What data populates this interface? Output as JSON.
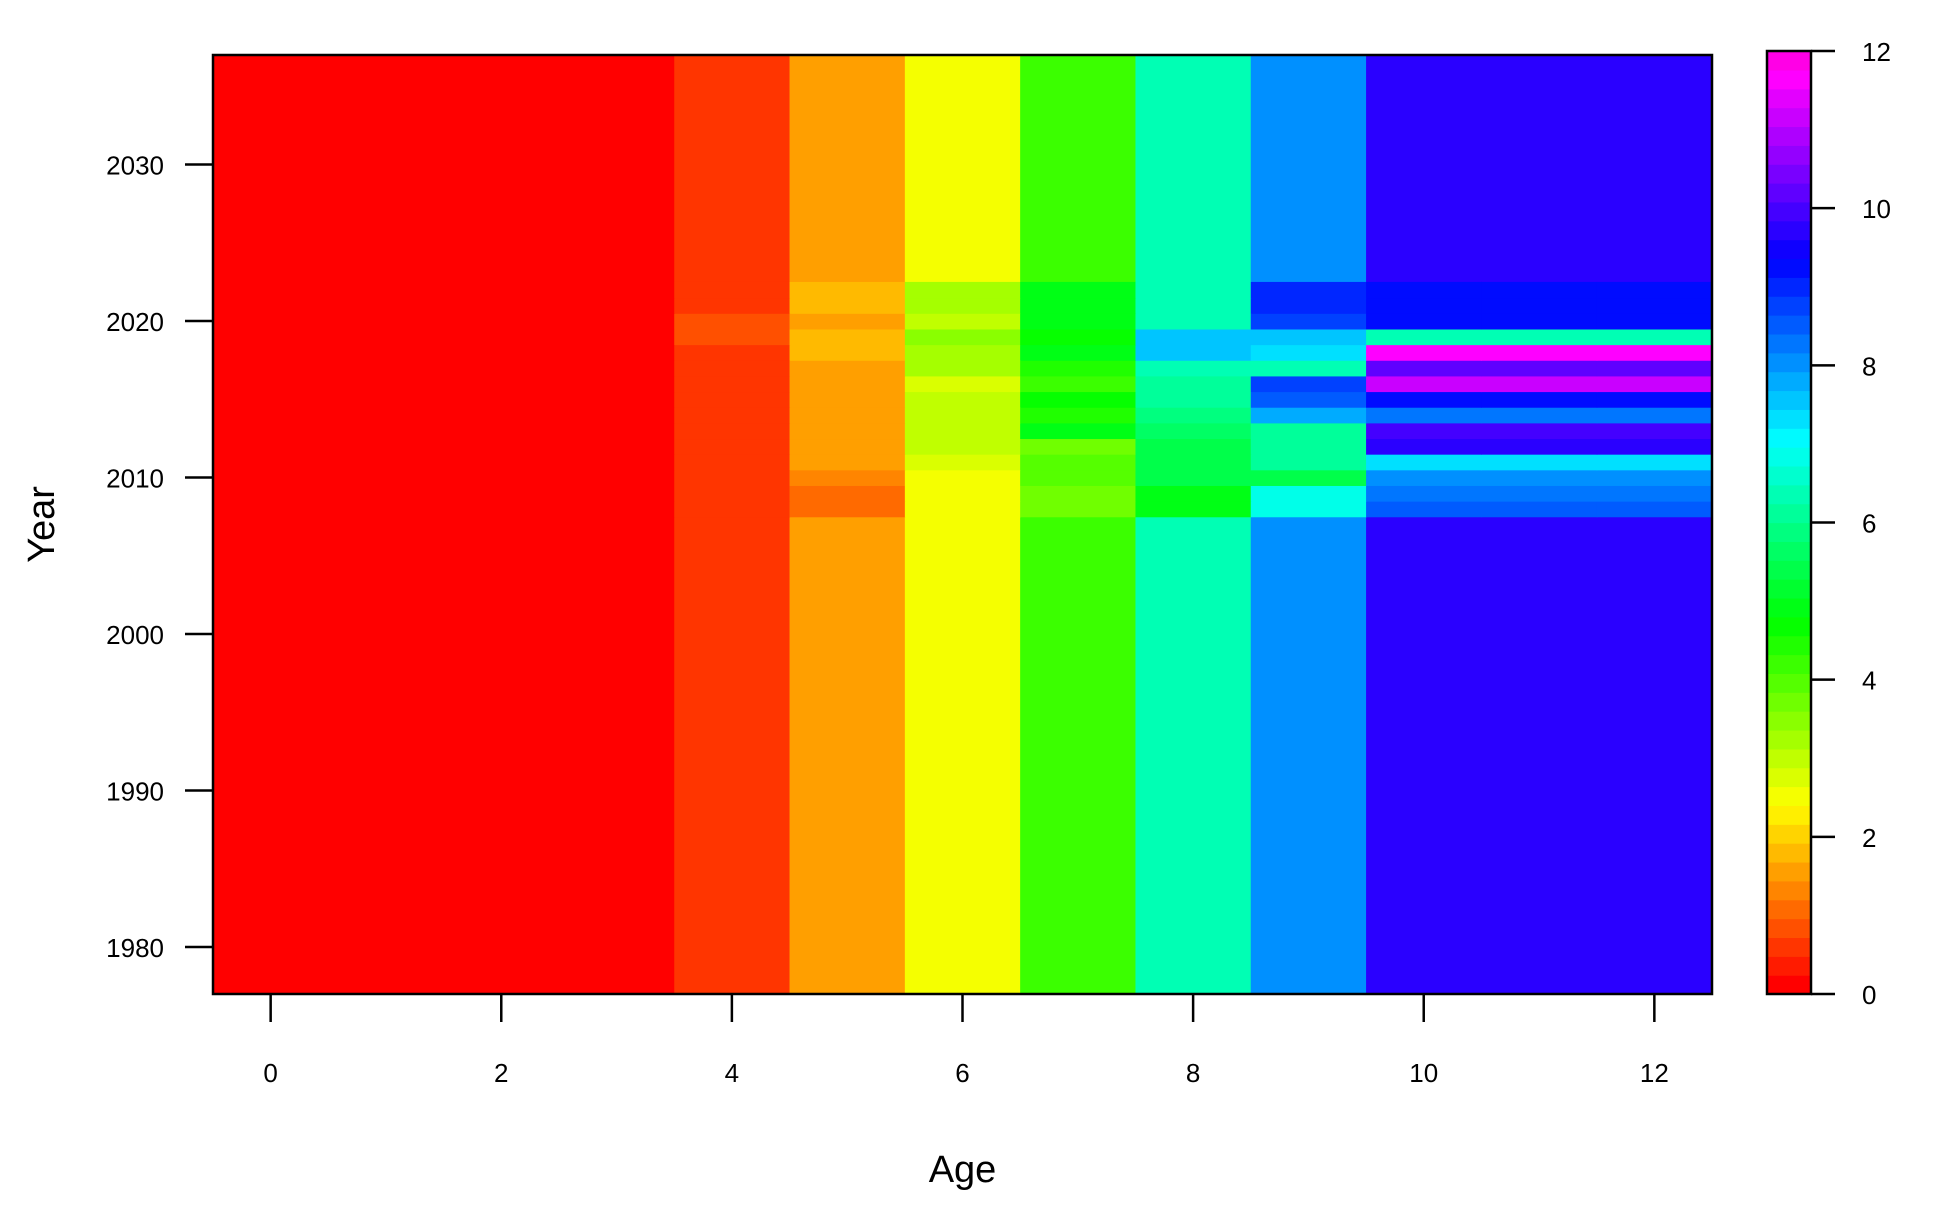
{
  "chart_data": {
    "type": "heatmap",
    "title": "",
    "xlabel": "Age",
    "ylabel": "Year",
    "x": [
      0,
      1,
      2,
      3,
      4,
      5,
      6,
      7,
      8,
      9,
      10,
      11,
      12
    ],
    "y_range": [
      1977,
      2037
    ],
    "xlim": [
      -0.5,
      12.5
    ],
    "x_ticks": [
      "0",
      "2",
      "4",
      "6",
      "8",
      "10",
      "12"
    ],
    "y_ticks": [
      "1980",
      "1990",
      "2000",
      "2010",
      "2020",
      "2030"
    ],
    "colorbar": {
      "range": [
        0,
        12
      ],
      "ticks": [
        "0",
        "2",
        "4",
        "6",
        "8",
        "10",
        "12"
      ],
      "palette": "rainbow (red → yellow → green → cyan → blue → magenta)",
      "levels": 50
    },
    "baseline_by_age": [
      0,
      0,
      0,
      0,
      0.65,
      1.5,
      2.6,
      4.2,
      6.3,
      8.1,
      9.8,
      9.8,
      9.8
    ],
    "baseline_years": "1977–2007 and 2023–2037",
    "rows": [
      {
        "year": 2008,
        "values": [
          0,
          0,
          0,
          0,
          0.65,
          1.1,
          2.6,
          3.8,
          4.8,
          6.8,
          8.5,
          8.5,
          8.5
        ]
      },
      {
        "year": 2009,
        "values": [
          0,
          0,
          0,
          0,
          0.65,
          1.1,
          2.6,
          3.8,
          4.8,
          6.8,
          8.3,
          8.3,
          8.3
        ]
      },
      {
        "year": 2010,
        "values": [
          0,
          0,
          0,
          0,
          0.65,
          1.2,
          2.6,
          3.9,
          5.3,
          5.5,
          8.0,
          8.0,
          8.0
        ]
      },
      {
        "year": 2011,
        "values": [
          0,
          0,
          0,
          0,
          0.65,
          1.6,
          2.8,
          3.9,
          5.3,
          6.0,
          7.4,
          7.4,
          7.4
        ]
      },
      {
        "year": 2012,
        "values": [
          0,
          0,
          0,
          0,
          0.65,
          1.5,
          2.9,
          3.6,
          5.4,
          6.1,
          9.6,
          9.6,
          9.6
        ]
      },
      {
        "year": 2013,
        "values": [
          0,
          0,
          0,
          0,
          0.65,
          1.5,
          3.0,
          4.8,
          5.7,
          6.0,
          9.9,
          9.9,
          9.9
        ]
      },
      {
        "year": 2014,
        "values": [
          0,
          0,
          0,
          0,
          0.65,
          1.5,
          3.1,
          4.4,
          5.8,
          7.8,
          8.3,
          8.3,
          8.3
        ]
      },
      {
        "year": 2015,
        "values": [
          0,
          0,
          0,
          0,
          0.65,
          1.5,
          3.0,
          4.7,
          6.0,
          8.6,
          9.2,
          9.2,
          9.2
        ]
      },
      {
        "year": 2016,
        "values": [
          0,
          0,
          0,
          0,
          0.65,
          1.5,
          2.8,
          4.3,
          6.2,
          8.7,
          11.1,
          11.1,
          11.1
        ]
      },
      {
        "year": 2017,
        "values": [
          0,
          0,
          0,
          0,
          0.65,
          1.5,
          3.2,
          4.4,
          6.3,
          6.4,
          10.3,
          10.3,
          10.3
        ]
      },
      {
        "year": 2018,
        "values": [
          0,
          0,
          0,
          0,
          0.65,
          1.7,
          3.3,
          4.9,
          7.6,
          7.2,
          11.7,
          11.7,
          11.7
        ]
      },
      {
        "year": 2019,
        "values": [
          0,
          0,
          0,
          0.2,
          0.9,
          1.8,
          3.5,
          4.6,
          7.5,
          7.5,
          6.3,
          6.3,
          6.3
        ]
      },
      {
        "year": 2020,
        "values": [
          0,
          0,
          0,
          0,
          0.9,
          1.6,
          3.0,
          4.8,
          6.3,
          8.7,
          9.2,
          9.2,
          9.2
        ]
      },
      {
        "year": 2021,
        "values": [
          0,
          0,
          0,
          0,
          0.65,
          1.8,
          3.3,
          5.0,
          6.3,
          8.9,
          9.3,
          9.3,
          9.3
        ]
      },
      {
        "year": 2022,
        "values": [
          0,
          0,
          0,
          0,
          0.65,
          1.8,
          3.3,
          5.0,
          6.3,
          8.9,
          9.3,
          9.3,
          9.3
        ]
      }
    ]
  }
}
